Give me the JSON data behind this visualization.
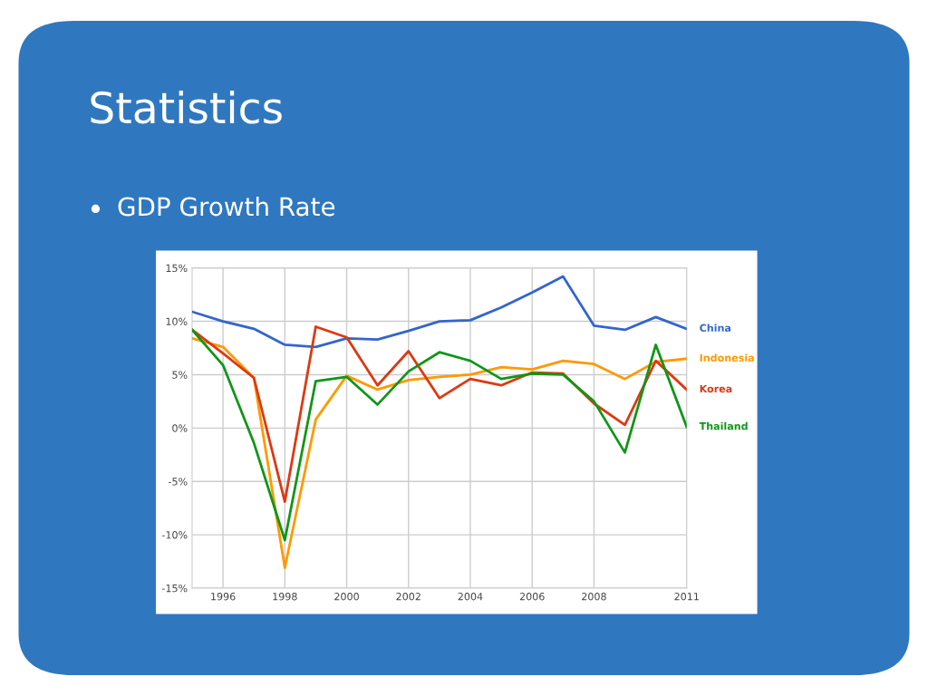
{
  "chart_data": {
    "type": "line",
    "title": "Statistics",
    "subtitle": "GDP Growth Rate",
    "x": [
      1995,
      1996,
      1997,
      1998,
      1999,
      2000,
      2001,
      2002,
      2003,
      2004,
      2005,
      2006,
      2007,
      2008,
      2009,
      2010,
      2011
    ],
    "series": [
      {
        "name": "China",
        "color": "#3366cc",
        "values": [
          10.9,
          10.0,
          9.3,
          7.8,
          7.6,
          8.4,
          8.3,
          9.1,
          10.0,
          10.1,
          11.3,
          12.7,
          14.2,
          9.6,
          9.2,
          10.4,
          9.3
        ]
      },
      {
        "name": "Indonesia",
        "color": "#ff9900",
        "values": [
          8.4,
          7.6,
          4.7,
          -13.1,
          0.8,
          4.9,
          3.6,
          4.5,
          4.8,
          5.0,
          5.7,
          5.5,
          6.3,
          6.0,
          4.6,
          6.2,
          6.5
        ]
      },
      {
        "name": "Korea",
        "color": "#dc3912",
        "values": [
          9.2,
          7.0,
          4.7,
          -6.9,
          9.5,
          8.5,
          4.0,
          7.2,
          2.8,
          4.6,
          4.0,
          5.2,
          5.1,
          2.3,
          0.3,
          6.3,
          3.6
        ]
      },
      {
        "name": "Thailand",
        "color": "#109618",
        "values": [
          9.2,
          5.9,
          -1.4,
          -10.5,
          4.4,
          4.8,
          2.2,
          5.3,
          7.1,
          6.3,
          4.6,
          5.1,
          5.0,
          2.5,
          -2.3,
          7.8,
          0.1
        ]
      }
    ],
    "xlim": [
      1995,
      2011
    ],
    "xticks": [
      1996,
      1998,
      2000,
      2002,
      2004,
      2006,
      2008,
      2011
    ],
    "ylim": [
      -15,
      15
    ],
    "yticks": [
      {
        "value": -15,
        "label": "-15%"
      },
      {
        "value": -10,
        "label": "-10%"
      },
      {
        "value": -5,
        "label": "-5%"
      },
      {
        "value": 0,
        "label": "0%"
      },
      {
        "value": 5,
        "label": "5%"
      },
      {
        "value": 10,
        "label": "10%"
      },
      {
        "value": 15,
        "label": "15%"
      }
    ],
    "grid": true,
    "legend": "right",
    "marker": "none",
    "line_style": "solid"
  }
}
